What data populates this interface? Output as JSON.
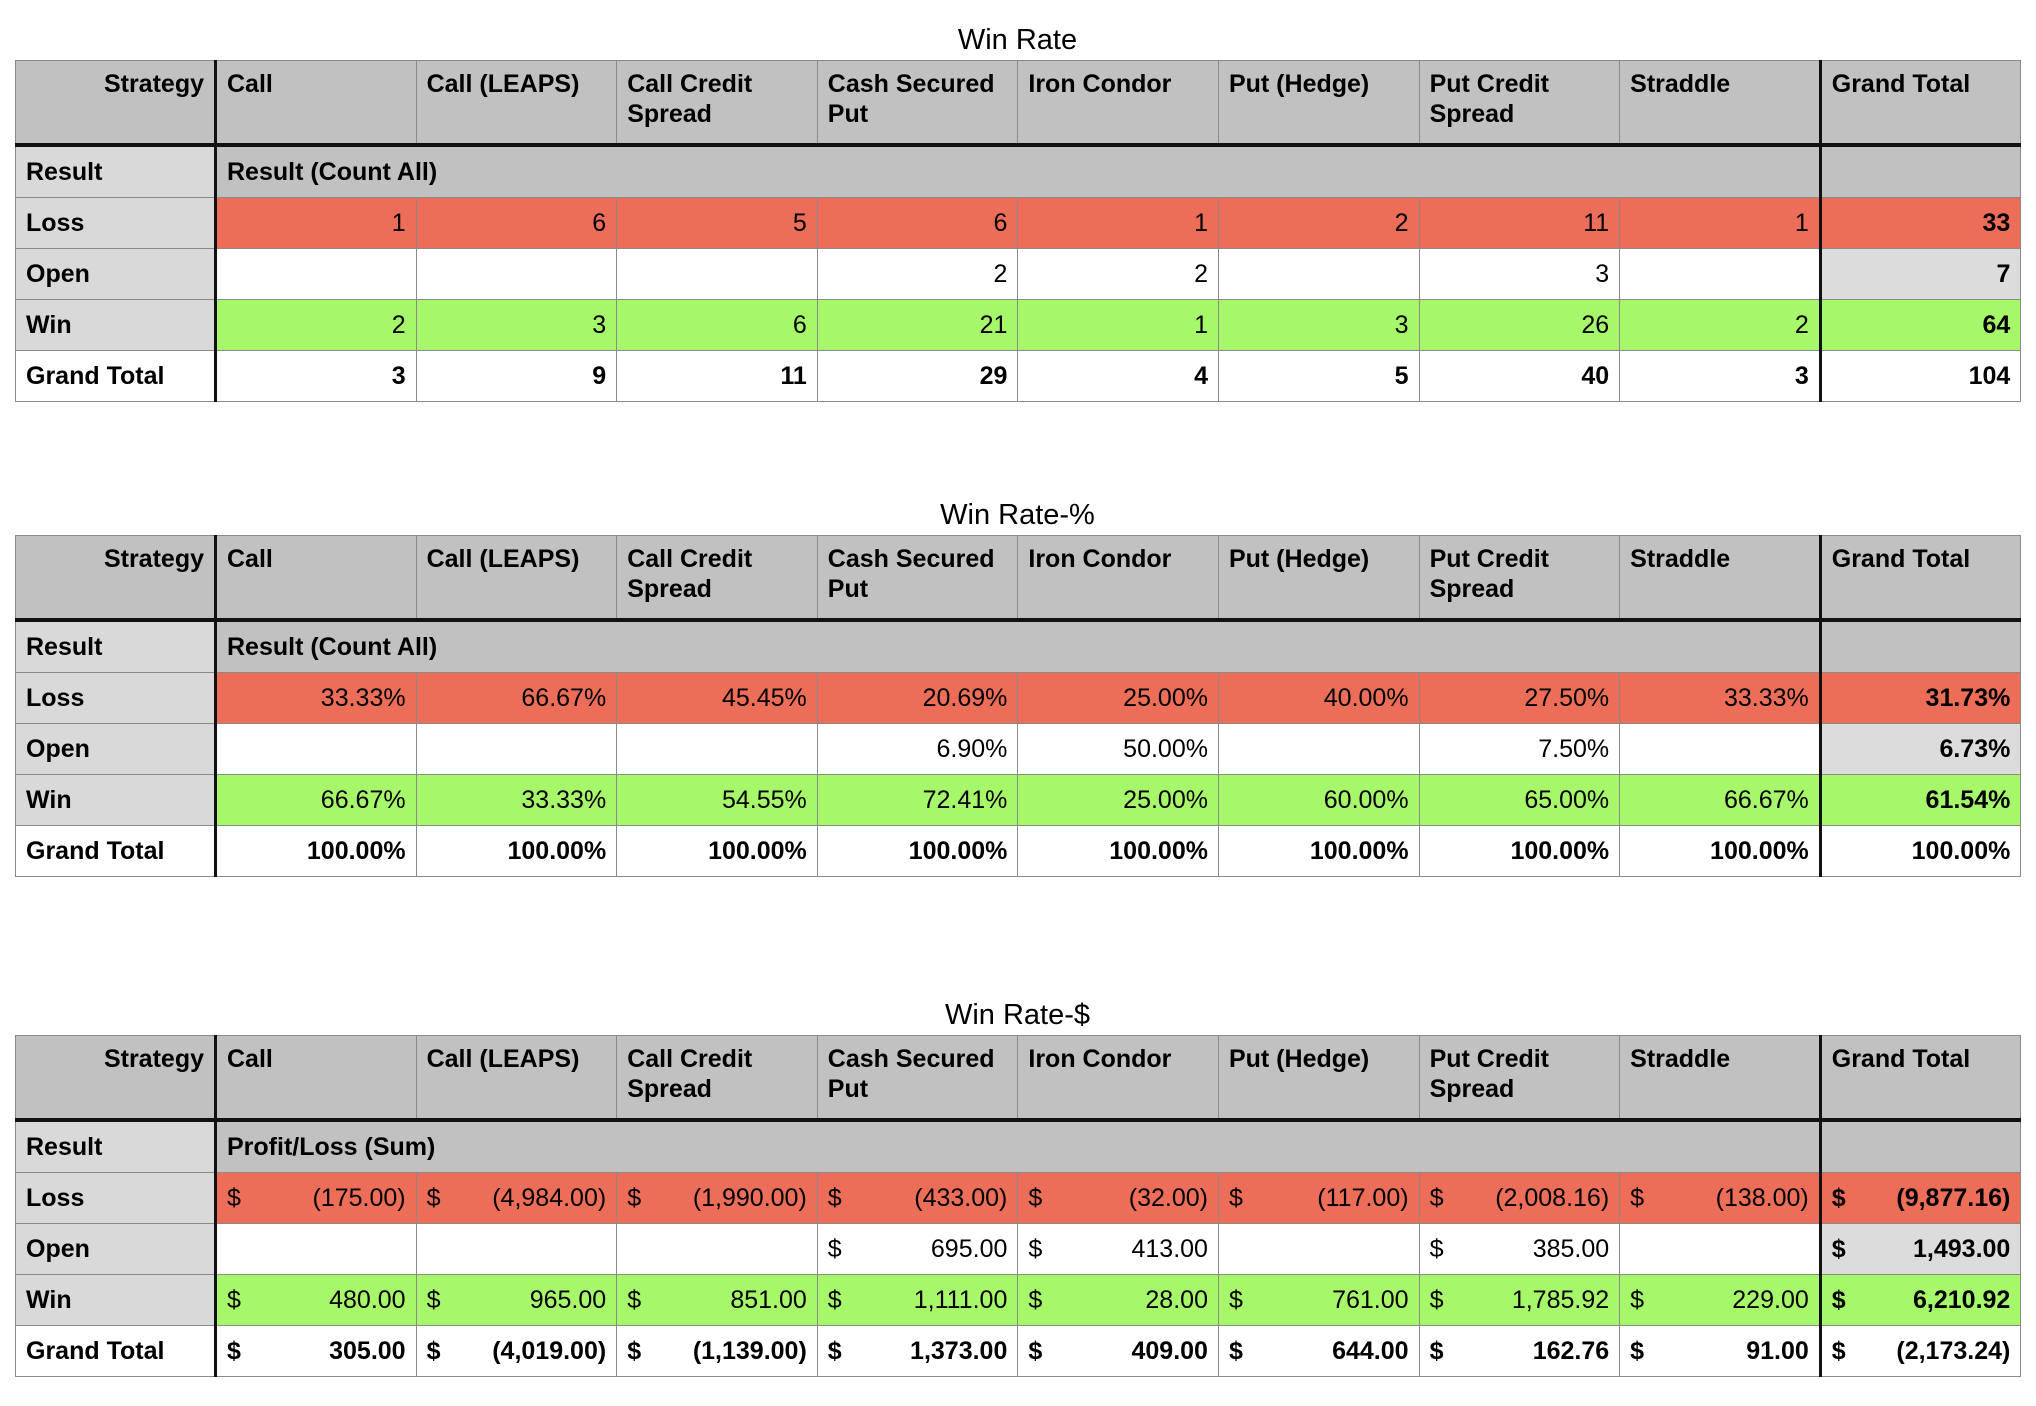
{
  "headers": {
    "strategy": "Strategy",
    "result": "Result",
    "columns": [
      "Call",
      "Call (LEAPS)",
      "Call Credit Spread",
      "Cash Secured Put",
      "Iron Condor",
      "Put (Hedge)",
      "Put Credit Spread",
      "Straddle",
      "Grand Total"
    ],
    "row_labels": [
      "Loss",
      "Open",
      "Win",
      "Grand Total"
    ]
  },
  "tables": [
    {
      "title": "Win Rate",
      "measure": "Result (Count All)",
      "rows": {
        "loss": [
          "1",
          "6",
          "5",
          "6",
          "1",
          "2",
          "11",
          "1",
          "33"
        ],
        "open": [
          "",
          "",
          "",
          "2",
          "2",
          "",
          "3",
          "",
          "7"
        ],
        "win": [
          "2",
          "3",
          "6",
          "21",
          "1",
          "3",
          "26",
          "2",
          "64"
        ],
        "total": [
          "3",
          "9",
          "11",
          "29",
          "4",
          "5",
          "40",
          "3",
          "104"
        ]
      }
    },
    {
      "title": "Win Rate-%",
      "measure": "Result (Count All)",
      "rows": {
        "loss": [
          "33.33%",
          "66.67%",
          "45.45%",
          "20.69%",
          "25.00%",
          "40.00%",
          "27.50%",
          "33.33%",
          "31.73%"
        ],
        "open": [
          "",
          "",
          "",
          "6.90%",
          "50.00%",
          "",
          "7.50%",
          "",
          "6.73%"
        ],
        "win": [
          "66.67%",
          "33.33%",
          "54.55%",
          "72.41%",
          "25.00%",
          "60.00%",
          "65.00%",
          "66.67%",
          "61.54%"
        ],
        "total": [
          "100.00%",
          "100.00%",
          "100.00%",
          "100.00%",
          "100.00%",
          "100.00%",
          "100.00%",
          "100.00%",
          "100.00%"
        ]
      }
    },
    {
      "title": "Win Rate-$",
      "measure": "Profit/Loss (Sum)",
      "currency": "$",
      "rows": {
        "loss": [
          "(175.00)",
          "(4,984.00)",
          "(1,990.00)",
          "(433.00)",
          "(32.00)",
          "(117.00)",
          "(2,008.16)",
          "(138.00)",
          "(9,877.16)"
        ],
        "open": [
          "",
          "",
          "",
          "695.00",
          "413.00",
          "",
          "385.00",
          "",
          "1,493.00"
        ],
        "win": [
          "480.00",
          "965.00",
          "851.00",
          "1,111.00",
          "28.00",
          "761.00",
          "1,785.92",
          "229.00",
          "6,210.92"
        ],
        "total": [
          "305.00",
          "(4,019.00)",
          "(1,139.00)",
          "1,373.00",
          "409.00",
          "644.00",
          "162.76",
          "91.00",
          "(2,173.24)"
        ]
      }
    }
  ],
  "colors": {
    "header": "#c0c1c0",
    "row_label": "#d9d9d9",
    "loss": "#ec6e58",
    "win": "#a7f76a",
    "open_total": "#dcdcdc"
  }
}
